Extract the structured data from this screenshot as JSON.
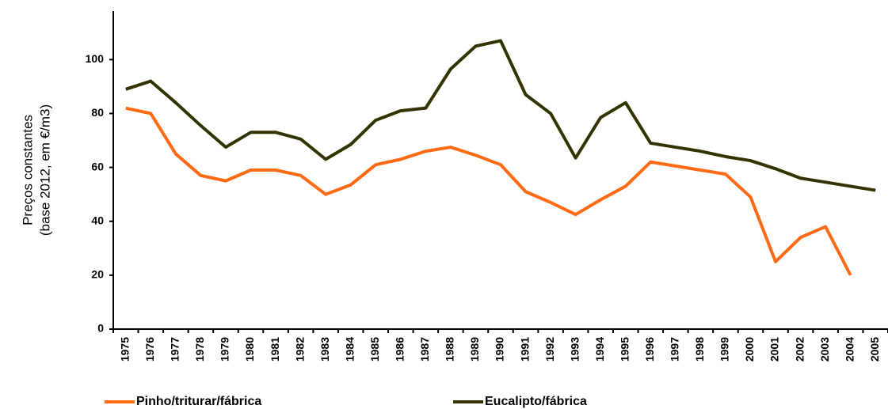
{
  "chart_data": {
    "type": "line",
    "ylabel": [
      "Preços constantes",
      "(base 2012, em €/m3)"
    ],
    "categories": [
      "1975",
      "1976",
      "1977",
      "1978",
      "1979",
      "1980",
      "1981",
      "1982",
      "1983",
      "1984",
      "1985",
      "1986",
      "1987",
      "1988",
      "1989",
      "1990",
      "1991",
      "1992",
      "1993",
      "1994",
      "1995",
      "1996",
      "1997",
      "1998",
      "1999",
      "2000",
      "2001",
      "2002",
      "2003",
      "2004",
      "2005"
    ],
    "series": [
      {
        "name": "Pinho/triturar/fábrica",
        "color": "#ff6a13",
        "values": [
          82,
          80,
          65,
          57,
          55,
          59,
          59,
          57,
          50,
          53.5,
          61,
          63,
          66,
          67.5,
          64.5,
          61,
          51,
          47,
          42.5,
          48,
          53,
          62,
          60.5,
          59,
          57.5,
          49,
          25,
          34,
          38,
          20,
          null
        ]
      },
      {
        "name": "Eucalipto/fábrica",
        "color": "#333300",
        "values": [
          89,
          92,
          84,
          75.5,
          67.5,
          73,
          73,
          70.5,
          63,
          68.5,
          77.5,
          81,
          82,
          96.5,
          105,
          107,
          87,
          80,
          63.5,
          78.5,
          84,
          69,
          67.5,
          66,
          64,
          62.5,
          59.5,
          56,
          54.5,
          53,
          51.5
        ]
      }
    ],
    "ylim": [
      0,
      118
    ],
    "yticks": [
      0,
      20,
      40,
      60,
      80,
      100
    ],
    "grid": false,
    "legend": "bottom"
  }
}
